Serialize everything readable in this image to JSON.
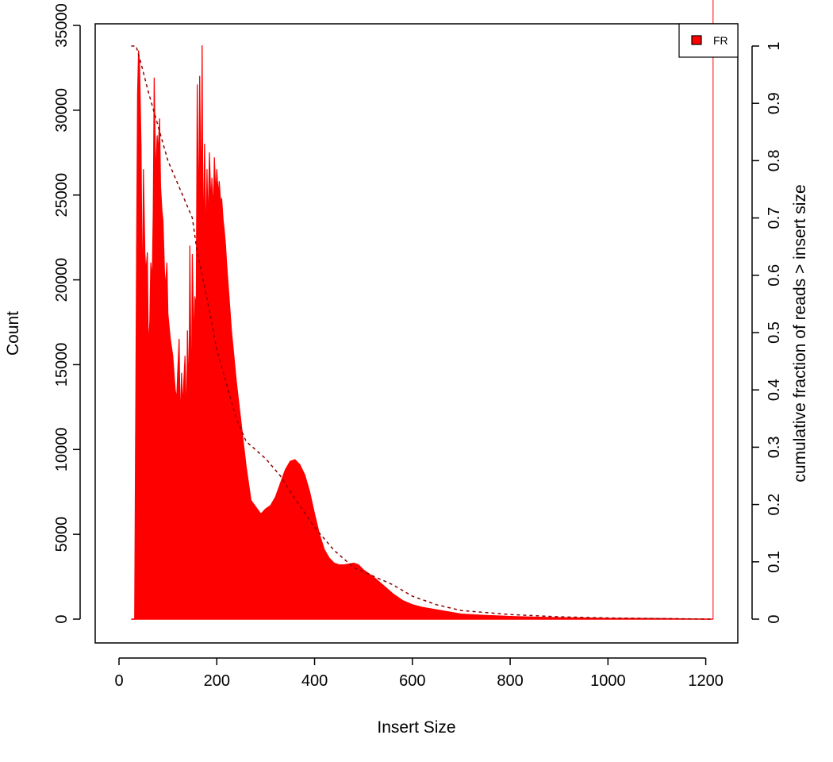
{
  "chart_data": {
    "type": "bar",
    "xlabel": "Insert Size",
    "ylabel": "Count",
    "y2label": "cumulative fraction of reads > insert size",
    "xlim": [
      0,
      1250
    ],
    "ylim": [
      0,
      35000
    ],
    "y2lim": [
      0,
      1
    ],
    "xticks": [
      "0",
      "200",
      "400",
      "600",
      "800",
      "1000",
      "1200"
    ],
    "yticks": [
      "0",
      "5000",
      "10000",
      "15000",
      "20000",
      "25000",
      "30000",
      "35000"
    ],
    "y2ticks": [
      "0",
      "0.1",
      "0.2",
      "0.3",
      "0.4",
      "0.5",
      "0.6",
      "0.7",
      "0.8",
      "0.9",
      "1"
    ],
    "legend": {
      "position": "top-right",
      "entries": [
        {
          "label": "FR",
          "color": "#ff0000"
        }
      ]
    },
    "series": [
      {
        "name": "FR",
        "kind": "histogram",
        "color": "#ff0000",
        "x": [
          25,
          32,
          34,
          36,
          38,
          40,
          42,
          45,
          48,
          50,
          53,
          55,
          58,
          60,
          63,
          65,
          68,
          70,
          72,
          75,
          78,
          80,
          83,
          85,
          88,
          90,
          93,
          95,
          98,
          100,
          105,
          110,
          115,
          118,
          120,
          123,
          125,
          128,
          130,
          135,
          138,
          140,
          143,
          145,
          148,
          150,
          153,
          155,
          158,
          160,
          163,
          165,
          168,
          170,
          172,
          175,
          178,
          180,
          182,
          185,
          188,
          190,
          193,
          195,
          198,
          200,
          203,
          205,
          208,
          210,
          213,
          215,
          218,
          220,
          225,
          230,
          240,
          250,
          260,
          270,
          280,
          290,
          300,
          310,
          320,
          330,
          340,
          350,
          360,
          370,
          380,
          390,
          400,
          410,
          420,
          430,
          440,
          450,
          460,
          470,
          480,
          490,
          500,
          520,
          540,
          560,
          580,
          600,
          620,
          640,
          660,
          680,
          700,
          750,
          800,
          850,
          900,
          950,
          1000,
          1100,
          1200,
          1215
        ],
        "y": [
          0,
          0,
          11000,
          22000,
          31000,
          33500,
          32800,
          28000,
          18000,
          26500,
          21500,
          20500,
          21600,
          16000,
          17500,
          21000,
          20000,
          24000,
          31900,
          26000,
          28500,
          27500,
          29500,
          25500,
          24000,
          23500,
          20500,
          19500,
          21000,
          18000,
          16500,
          15500,
          13500,
          13000,
          14500,
          16500,
          11500,
          14500,
          12500,
          15500,
          11500,
          17000,
          13000,
          22000,
          12000,
          21500,
          16000,
          19000,
          18500,
          31500,
          23000,
          32000,
          24000,
          33800,
          21500,
          28000,
          22000,
          26500,
          23000,
          27500,
          24500,
          26000,
          24000,
          27200,
          25000,
          26500,
          25000,
          25800,
          24500,
          24800,
          23500,
          23000,
          22000,
          21000,
          19000,
          17000,
          14000,
          11500,
          9000,
          7000,
          6600,
          6200,
          6500,
          6700,
          7200,
          8000,
          8800,
          9300,
          9400,
          9100,
          8500,
          7500,
          6200,
          5000,
          4100,
          3600,
          3300,
          3200,
          3200,
          3250,
          3300,
          3200,
          2900,
          2500,
          2000,
          1500,
          1100,
          850,
          700,
          600,
          500,
          400,
          300,
          220,
          160,
          120,
          90,
          70,
          50,
          40,
          0
        ]
      },
      {
        "name": "cumulative fraction of reads > insert size",
        "kind": "cumulative",
        "axis": "right",
        "color": "#8b0000",
        "style": "dashed",
        "x": [
          25,
          35,
          45,
          60,
          80,
          100,
          130,
          150,
          160,
          180,
          200,
          220,
          240,
          260,
          280,
          300,
          330,
          360,
          400,
          440,
          480,
          520,
          560,
          600,
          650,
          700,
          800,
          900,
          1000,
          1100,
          1215
        ],
        "y": [
          1,
          1,
          0.97,
          0.92,
          0.86,
          0.8,
          0.74,
          0.7,
          0.64,
          0.56,
          0.47,
          0.41,
          0.35,
          0.31,
          0.295,
          0.28,
          0.25,
          0.21,
          0.16,
          0.12,
          0.09,
          0.075,
          0.06,
          0.04,
          0.025,
          0.015,
          0.008,
          0.004,
          0.002,
          0.001,
          0
        ]
      }
    ]
  }
}
